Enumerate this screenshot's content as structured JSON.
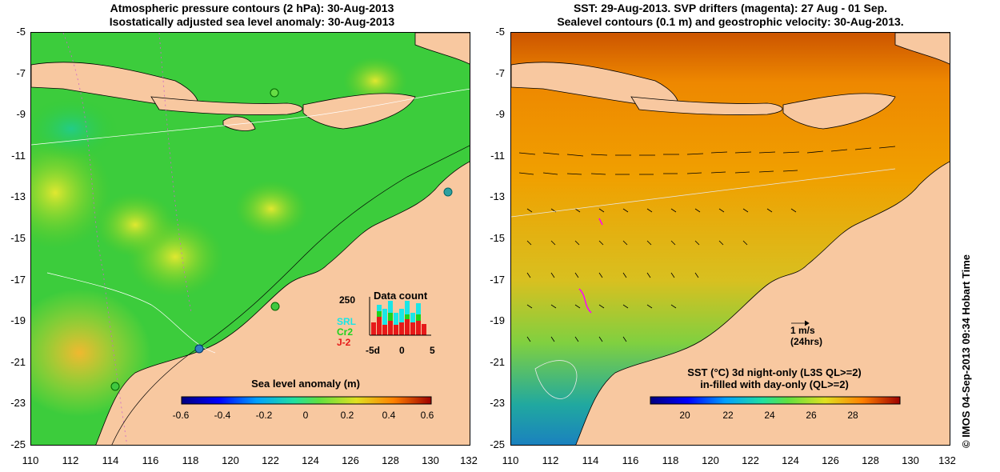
{
  "left_panel": {
    "title_line1": "Atmospheric pressure contours (2 hPa): 30-Aug-2013",
    "title_line2": "Isostatically adjusted sea level anomaly: 30-Aug-2013",
    "colorbar_title": "Sea level anomaly (m)",
    "colorbar_ticks": [
      "-0.6",
      "-0.4",
      "-0.2",
      "0",
      "0.2",
      "0.4",
      "0.6"
    ],
    "data_count": {
      "title": "Data count",
      "y_value_label": "250",
      "series_labels": [
        "SRL",
        "Cr2",
        "J-2"
      ],
      "x_tick_labels": [
        "-5d",
        "0",
        "5"
      ],
      "series_colors": [
        "#19e6e6",
        "#1cd41c",
        "#e61919"
      ]
    }
  },
  "right_panel": {
    "title_line1": "SST: 29-Aug-2013. SVP drifters (magenta): 27 Aug - 01 Sep.",
    "title_line2": "Sealevel contours (0.1 m) and geostrophic velocity: 30-Aug-2013.",
    "colorbar_title_line1": "SST (°C)  3d night-only (L3S QL>=2)",
    "colorbar_title_line2": "in-filled with day-only (QL>=2)",
    "colorbar_ticks": [
      "20",
      "22",
      "24",
      "26",
      "28"
    ],
    "velocity_scale_label": "1 m/s",
    "velocity_scale_sub": "(24hrs)"
  },
  "axes": {
    "y_ticks": [
      "-5",
      "-7",
      "-9",
      "-11",
      "-13",
      "-15",
      "-17",
      "-19",
      "-21",
      "-23",
      "-25"
    ],
    "x_ticks": [
      "110",
      "112",
      "114",
      "116",
      "118",
      "120",
      "122",
      "124",
      "126",
      "128",
      "130",
      "132"
    ]
  },
  "credit": "© IMOS 04-Sep-2013 09:34 Hobart Time",
  "colors": {
    "land": "#f8c8a0",
    "ocean_sla": "#33cc33",
    "ocean_sst": "#ee9900"
  }
}
